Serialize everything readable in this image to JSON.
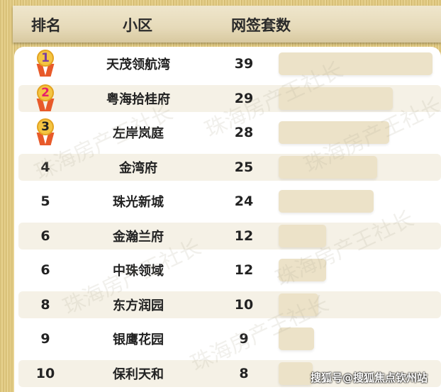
{
  "header": {
    "rank": "排名",
    "community": "小区",
    "count": "网签套数"
  },
  "rows": [
    {
      "rank": "1",
      "name": "天茂领航湾",
      "count": 39,
      "medal": true,
      "medal_color": "#7b3fa0"
    },
    {
      "rank": "2",
      "name": "粤海拾桂府",
      "count": 29,
      "medal": true,
      "medal_color": "#e8206a"
    },
    {
      "rank": "3",
      "name": "左岸岚庭",
      "count": 28,
      "medal": true,
      "medal_color": "#222222"
    },
    {
      "rank": "4",
      "name": "金湾府",
      "count": 25
    },
    {
      "rank": "5",
      "name": "珠光新城",
      "count": 24
    },
    {
      "rank": "6",
      "name": "金瀚兰府",
      "count": 12
    },
    {
      "rank": "6",
      "name": "中珠领域",
      "count": 12
    },
    {
      "rank": "8",
      "name": "东方润园",
      "count": 10
    },
    {
      "rank": "9",
      "name": "银鹰花园",
      "count": 9
    },
    {
      "rank": "10",
      "name": "保利天和",
      "count": 8
    }
  ],
  "watermark": "珠海房产王社长",
  "footer": "搜狐号@搜狐焦点钦州站"
}
